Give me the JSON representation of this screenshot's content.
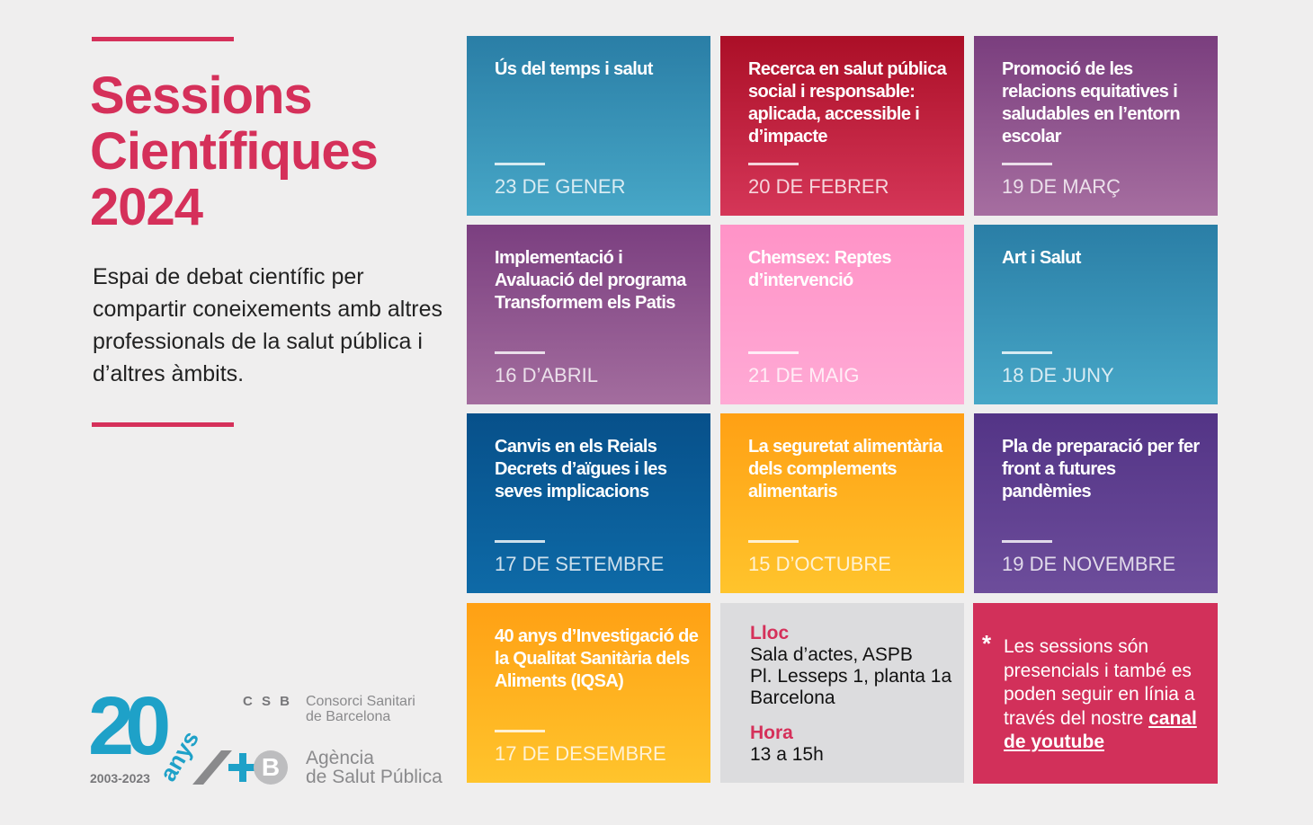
{
  "header": {
    "title_lines": [
      "Sessions",
      "Científiques",
      "2024"
    ],
    "description": "Espai de debat científic per compartir coneixements amb altres professionals de la salut pública i d’altres àmbits."
  },
  "sessions": [
    {
      "title": "Ús del temps i salut",
      "date": "23 DE GENER",
      "colors": [
        "#2a7ea6",
        "#47a7c7"
      ]
    },
    {
      "title": "Recerca en salut pública social i responsable: aplicada, accessible i d’impacte",
      "date": "20 DE FEBRER",
      "colors": [
        "#ab0f27",
        "#d53658"
      ]
    },
    {
      "title": "Promoció de les relacions equitatives i saludables en l’entorn escolar",
      "date": "19 DE MARÇ",
      "colors": [
        "#7a3e7e",
        "#a66ea0"
      ]
    },
    {
      "title": "Implementació i Avaluació del programa Transformem els Patis",
      "date": "16 D’ABRIL",
      "colors": [
        "#7b3f80",
        "#a36d9e"
      ]
    },
    {
      "title": "Chemsex: Reptes d’intervenció",
      "date": "21 DE MAIG",
      "colors": [
        "#ff93c7",
        "#ffaad5"
      ]
    },
    {
      "title": "Art i Salut",
      "date": "18 DE JUNY",
      "colors": [
        "#2a7ea6",
        "#47a7c7"
      ]
    },
    {
      "title": "Canvis en els Reials Decrets d’aïgues i les seves implicacions",
      "date": "17 DE SETEMBRE",
      "colors": [
        "#07508a",
        "#0e6aa7"
      ]
    },
    {
      "title": "La seguretat alimentària dels complements alimentaris",
      "date": "15 D’OCTUBRE",
      "colors": [
        "#ffa014",
        "#ffc42c"
      ]
    },
    {
      "title": "Pla de preparació per fer front a futures pandèmies",
      "date": "19 DE NOVEMBRE",
      "colors": [
        "#533486",
        "#6d4d9b"
      ]
    },
    {
      "title": "40 anys d’Investigació de la Qualitat Sanitària dels Aliments (IQSA)",
      "date": "17 DE DESEMBRE",
      "colors": [
        "#ffa014",
        "#ffc42c"
      ]
    }
  ],
  "info": {
    "place_label": "Lloc",
    "place_lines": [
      "Sala d’actes, ASPB",
      "Pl. Lesseps 1, planta 1a",
      "Barcelona"
    ],
    "time_label": "Hora",
    "time": "13 a 15h"
  },
  "note": {
    "star": "*",
    "text": "Les sessions són presencials i també es poden seguir en línia a través del nostre",
    "link": "canal de youtube"
  },
  "logos": {
    "anniversary": "20",
    "anniversary_word": "anys",
    "years": "2003-2023",
    "csb_abbr": "C S B",
    "csb_name_lines": [
      "Consorci Sanitari",
      "de Barcelona"
    ],
    "aspb_name_lines": [
      "Agència",
      "de Salut Pública"
    ],
    "aspb_mark": "B"
  },
  "colors": {
    "accent": "#d5305a",
    "logo_blue": "#1ea1c8",
    "logo_grey": "#8a8a8c"
  }
}
